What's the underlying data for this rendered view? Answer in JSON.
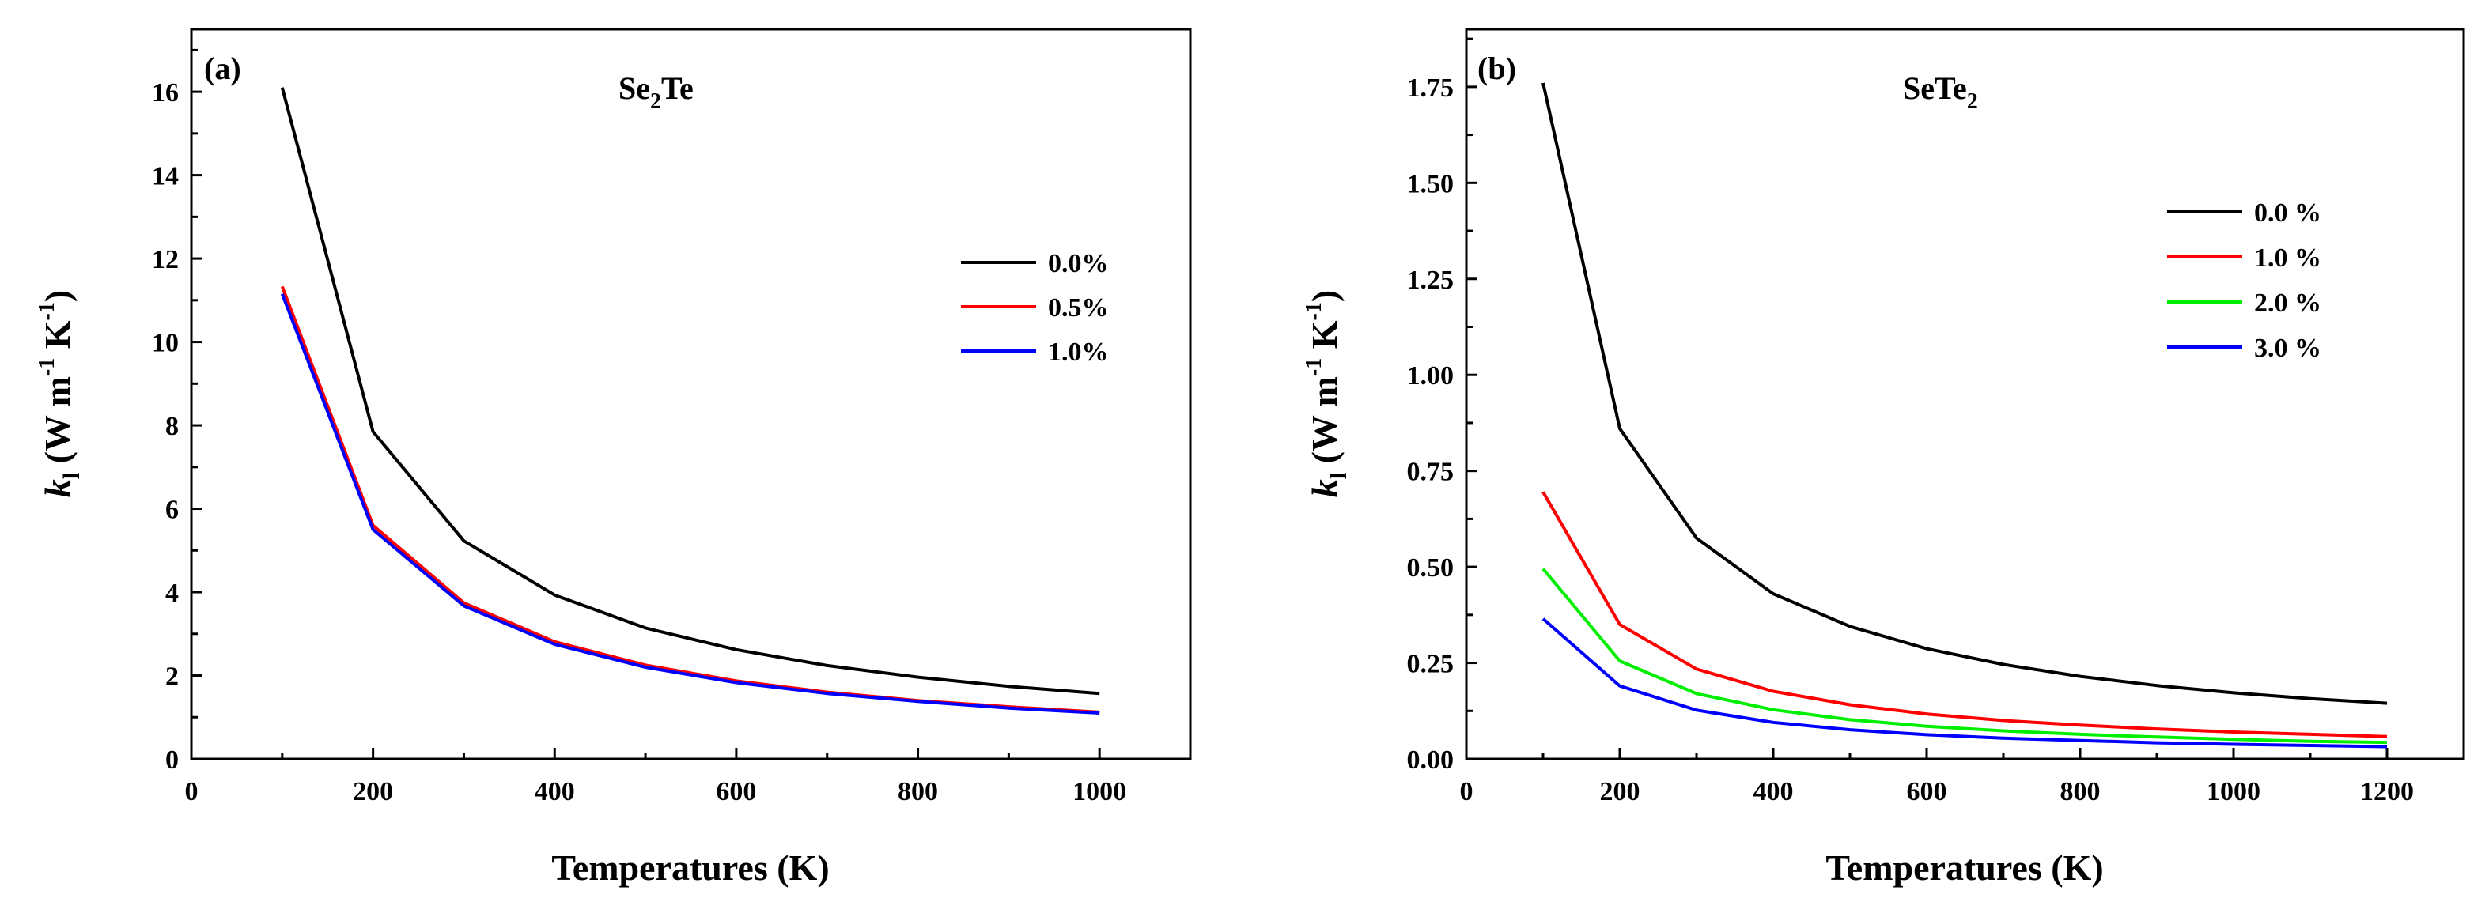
{
  "chart_data": [
    {
      "type": "line",
      "panel_label": "(a)",
      "title": {
        "main": "Se",
        "sub": "2",
        "tail": "Te"
      },
      "xlabel": "Temperatures (K)",
      "ylabel": {
        "k": "k",
        "k_sub": "l",
        "open": " (W m",
        "exp1": "-1",
        "mid": " K",
        "exp2": "-1",
        "close": ")"
      },
      "xlim": [
        0,
        1100
      ],
      "ylim": [
        0,
        17.5
      ],
      "x_ticks": [
        0,
        200,
        400,
        600,
        800,
        1000
      ],
      "y_ticks": [
        0,
        2,
        4,
        6,
        8,
        10,
        12,
        14,
        16
      ],
      "legend_position": "right",
      "x": [
        100,
        200,
        300,
        400,
        500,
        600,
        700,
        800,
        900,
        1000
      ],
      "series": [
        {
          "name": "0.0%",
          "color": "#000000",
          "values": [
            16.1,
            7.85,
            5.23,
            3.93,
            3.14,
            2.62,
            2.24,
            1.96,
            1.74,
            1.57
          ]
        },
        {
          "name": "0.5%",
          "color": "#ff0000",
          "values": [
            11.33,
            5.6,
            3.74,
            2.81,
            2.25,
            1.87,
            1.6,
            1.4,
            1.25,
            1.12
          ]
        },
        {
          "name": "1.0%",
          "color": "#0000ff",
          "values": [
            11.15,
            5.5,
            3.67,
            2.75,
            2.2,
            1.83,
            1.57,
            1.38,
            1.22,
            1.1
          ]
        }
      ]
    },
    {
      "type": "line",
      "panel_label": "(b)",
      "title": {
        "main": "SeTe",
        "sub": "2",
        "tail": ""
      },
      "xlabel": "Temperatures (K)",
      "ylabel": {
        "k": "k",
        "k_sub": "l",
        "open": " (W m",
        "exp1": "-1",
        "mid": " K",
        "exp2": "-1",
        "close": ")"
      },
      "xlim": [
        0,
        1300
      ],
      "ylim": [
        0,
        1.9
      ],
      "x_ticks": [
        0,
        200,
        400,
        600,
        800,
        1000,
        1200
      ],
      "y_ticks": [
        "0.00",
        "0.25",
        "0.50",
        "0.75",
        "1.00",
        "1.25",
        "1.50",
        "1.75"
      ],
      "legend_position": "right",
      "x": [
        100,
        200,
        300,
        400,
        500,
        600,
        700,
        800,
        900,
        1000,
        1100,
        1200
      ],
      "series": [
        {
          "name": "0.0 %",
          "color": "#000000",
          "values": [
            1.76,
            0.86,
            0.575,
            0.43,
            0.345,
            0.287,
            0.246,
            0.215,
            0.191,
            0.172,
            0.157,
            0.145
          ]
        },
        {
          "name": "1.0 %",
          "color": "#ff0000",
          "values": [
            0.695,
            0.35,
            0.234,
            0.176,
            0.141,
            0.117,
            0.1,
            0.088,
            0.078,
            0.07,
            0.064,
            0.058
          ]
        },
        {
          "name": "2.0 %",
          "color": "#00ee00",
          "values": [
            0.495,
            0.255,
            0.17,
            0.128,
            0.102,
            0.085,
            0.073,
            0.064,
            0.057,
            0.051,
            0.046,
            0.043
          ]
        },
        {
          "name": "3.0 %",
          "color": "#0000ff",
          "values": [
            0.365,
            0.19,
            0.127,
            0.095,
            0.076,
            0.063,
            0.054,
            0.048,
            0.042,
            0.038,
            0.035,
            0.032
          ]
        }
      ]
    }
  ]
}
